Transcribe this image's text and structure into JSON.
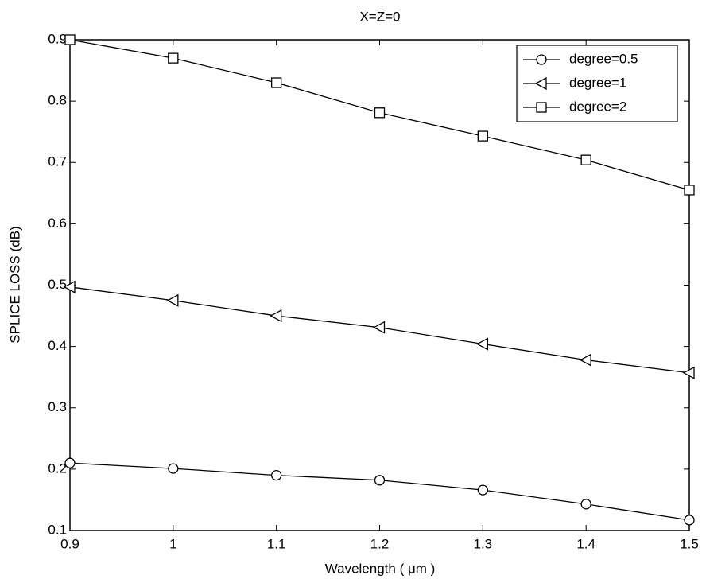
{
  "chart_data": {
    "type": "line",
    "title": "X=Z=0",
    "x_label": "Wavelength ( μm )",
    "y_label": "SPLICE LOSS (dB)",
    "x": [
      0.9,
      1,
      1.1,
      1.2,
      1.3,
      1.4,
      1.5
    ],
    "series": [
      {
        "name": "degree=0.5",
        "color": "#000000",
        "marker": "circle",
        "values": [
          0.21,
          0.201,
          0.19,
          0.182,
          0.166,
          0.143,
          0.117
        ]
      },
      {
        "name": "degree=1",
        "color": "#000000",
        "marker": "triangle-left",
        "values": [
          0.497,
          0.475,
          0.45,
          0.431,
          0.404,
          0.378,
          0.357
        ]
      },
      {
        "name": "degree=2",
        "color": "#000000",
        "marker": "square",
        "values": [
          0.9,
          0.87,
          0.83,
          0.781,
          0.743,
          0.704,
          0.655
        ]
      }
    ],
    "xlim": [
      0.9,
      1.5
    ],
    "xticks": [
      0.9,
      1,
      1.1,
      1.2,
      1.3,
      1.4,
      1.5
    ],
    "ylim": [
      0.1,
      0.9
    ],
    "yticks": [
      0.1,
      0.2,
      0.3,
      0.4,
      0.5,
      0.6,
      0.7,
      0.8,
      0.9
    ],
    "legend": "top-right",
    "grid": false
  }
}
